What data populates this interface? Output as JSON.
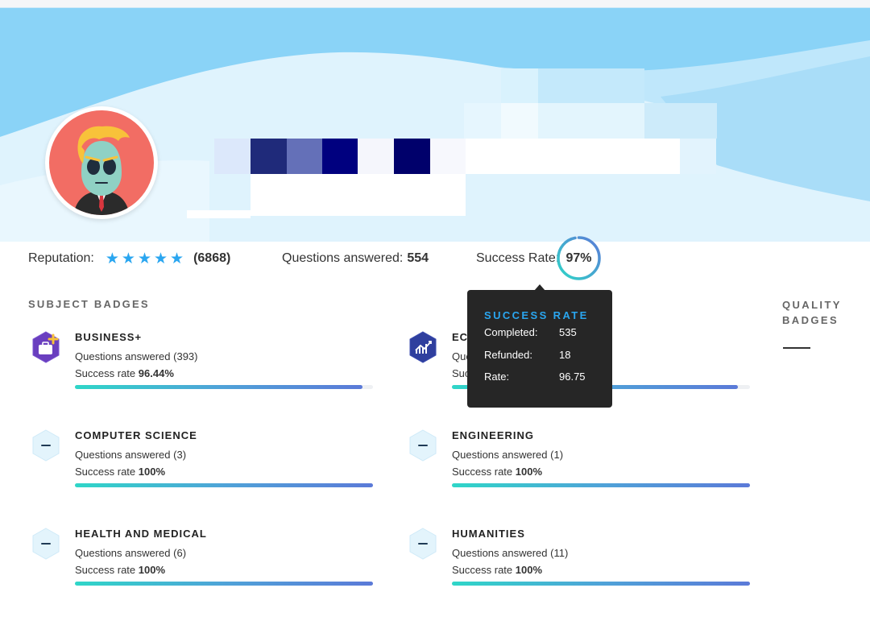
{
  "profile": {
    "reputation_label": "Reputation:",
    "reputation_stars": 5,
    "reputation_count": "(6868)",
    "questions_label": "Questions answered:",
    "questions_value": "554",
    "success_label": "Success Rate:",
    "success_value": "97%",
    "success_fraction": 0.97
  },
  "sections": {
    "subject_badges": "SUBJECT BADGES",
    "quality_badges": "QUALITY BADGES"
  },
  "badges": [
    {
      "name": "BUSINESS+",
      "questions_prefix": "Questions answered",
      "questions": "(393)",
      "rate_prefix": "Success rate",
      "rate": "96.44%",
      "fill": 0.9644,
      "icon": "business-plus-icon"
    },
    {
      "name": "ECONOMICS",
      "questions_prefix": "Questions answered",
      "questions": "",
      "rate_prefix": "Success rate",
      "rate": "",
      "fill": 0.96,
      "icon": "economics-chart-icon"
    },
    {
      "name": "COMPUTER SCIENCE",
      "questions_prefix": "Questions answered",
      "questions": "(3)",
      "rate_prefix": "Success rate",
      "rate": "100%",
      "fill": 1.0,
      "icon": "minus-hexagon-icon"
    },
    {
      "name": "ENGINEERING",
      "questions_prefix": "Questions answered",
      "questions": "(1)",
      "rate_prefix": "Success rate",
      "rate": "100%",
      "fill": 1.0,
      "icon": "minus-hexagon-icon"
    },
    {
      "name": "HEALTH AND MEDICAL",
      "questions_prefix": "Questions answered",
      "questions": "(6)",
      "rate_prefix": "Success rate",
      "rate": "100%",
      "fill": 1.0,
      "icon": "minus-hexagon-icon"
    },
    {
      "name": "HUMANITIES",
      "questions_prefix": "Questions answered",
      "questions": "(11)",
      "rate_prefix": "Success rate",
      "rate": "100%",
      "fill": 1.0,
      "icon": "minus-hexagon-icon"
    }
  ],
  "tooltip": {
    "title": "SUCCESS RATE",
    "rows": [
      {
        "label": "Completed:",
        "value": "535"
      },
      {
        "label": "Refunded:",
        "value": "18"
      },
      {
        "label": "Rate:",
        "value": "96.75"
      }
    ]
  },
  "colors": {
    "accent": "#2aa6f0",
    "star": "#2aa6f0",
    "tooltip_bg": "#262626",
    "avatar_bg": "#f26d64"
  }
}
